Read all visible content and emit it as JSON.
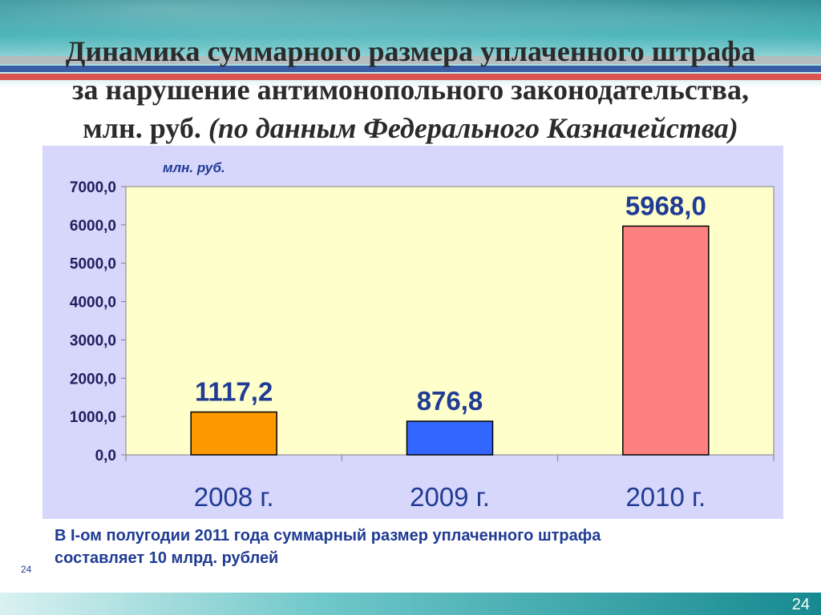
{
  "slide": {
    "title_line1": "Динамика суммарного размера уплаченного штрафа",
    "title_line2": "за нарушение антимонопольного законодательства,",
    "title_line3_plain": "млн. руб. ",
    "title_line3_italic": "(по данным Федерального Казначейства)",
    "note_line1": "В I-ом полугодии 2011 года суммарный размер уплаченного штрафа",
    "note_line2": "составляет 10 млрд. рублей",
    "page_number_small": "24",
    "page_number": "24"
  },
  "chart_data": {
    "type": "bar",
    "unit_label": "млн. руб.",
    "categories": [
      "2008 г.",
      "2009 г.",
      "2010 г."
    ],
    "values": [
      1117.2,
      876.8,
      5968.0
    ],
    "value_labels": [
      "1117,2",
      "876,8",
      "5968,0"
    ],
    "bar_colors": [
      "#ff9900",
      "#3366ff",
      "#ff8080"
    ],
    "plot_background": "#ffffcc",
    "ylim": [
      0,
      7000
    ],
    "yticks": [
      0,
      1000,
      2000,
      3000,
      4000,
      5000,
      6000,
      7000
    ],
    "ytick_labels": [
      "0,0",
      "1000,0",
      "2000,0",
      "3000,0",
      "4000,0",
      "5000,0",
      "6000,0",
      "7000,0"
    ],
    "grid": false,
    "legend": "none"
  }
}
